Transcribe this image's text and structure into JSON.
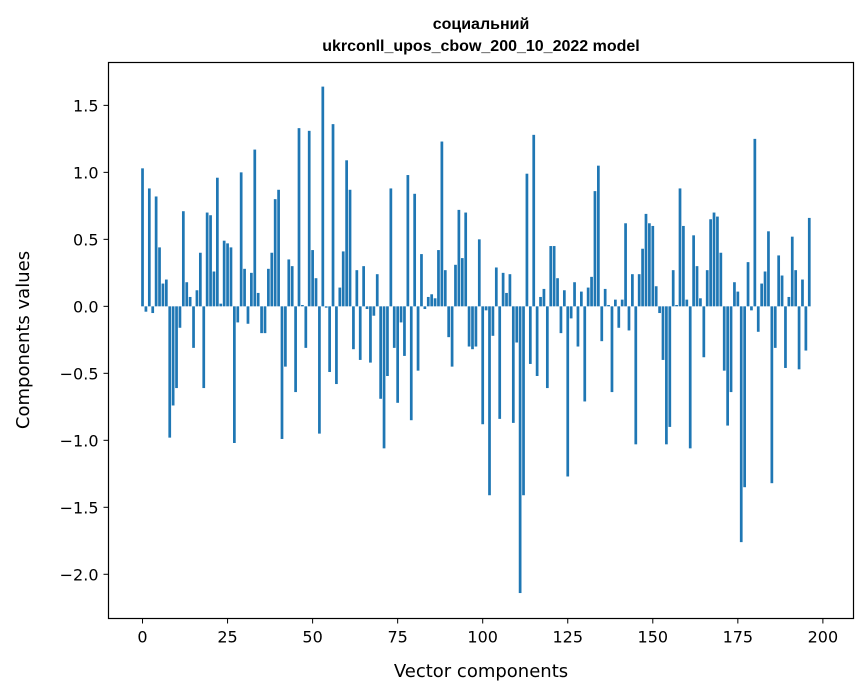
{
  "chart_data": {
    "type": "bar",
    "title_line1": "социальний",
    "title_line2": "ukrconll_upos_cbow_200_10_2022 model",
    "xlabel": "Vector components",
    "ylabel": "Components values",
    "xlim": [
      -10,
      209
    ],
    "ylim": [
      -2.33,
      1.82
    ],
    "xticks": [
      0,
      25,
      50,
      75,
      100,
      125,
      150,
      175,
      200
    ],
    "yticks": [
      -2.0,
      -1.5,
      -1.0,
      -0.5,
      0.0,
      0.5,
      1.0,
      1.5
    ],
    "ytick_labels": [
      "−2.0",
      "−1.5",
      "−1.0",
      "−0.5",
      "0.0",
      "0.5",
      "1.0",
      "1.5"
    ],
    "bar_color": "#1f77b4",
    "values": [
      1.03,
      -0.04,
      0.88,
      -0.05,
      0.82,
      0.44,
      0.17,
      0.2,
      -0.98,
      -0.74,
      -0.61,
      -0.16,
      0.71,
      0.18,
      0.07,
      -0.31,
      0.12,
      0.4,
      -0.61,
      0.7,
      0.68,
      0.26,
      0.96,
      0.02,
      0.49,
      0.47,
      0.44,
      -1.02,
      -0.12,
      1.0,
      0.28,
      -0.13,
      0.25,
      1.17,
      0.1,
      -0.2,
      -0.2,
      0.28,
      0.4,
      0.8,
      0.87,
      -0.99,
      -0.45,
      0.35,
      0.3,
      -0.64,
      1.33,
      0.01,
      -0.31,
      1.31,
      0.42,
      0.21,
      -0.95,
      1.64,
      -0.01,
      -0.49,
      1.36,
      -0.58,
      0.14,
      0.41,
      1.09,
      0.87,
      -0.32,
      0.27,
      -0.4,
      0.3,
      -0.02,
      -0.42,
      -0.07,
      0.24,
      -0.69,
      -1.06,
      -0.52,
      0.88,
      -0.31,
      -0.72,
      -0.12,
      -0.37,
      0.98,
      -0.85,
      0.84,
      -0.48,
      0.39,
      -0.02,
      0.07,
      0.09,
      0.06,
      0.42,
      1.23,
      0.27,
      -0.23,
      -0.45,
      0.31,
      0.72,
      0.36,
      0.7,
      -0.3,
      -0.32,
      -0.3,
      0.5,
      -0.88,
      -0.03,
      -1.41,
      -0.22,
      0.29,
      -0.84,
      0.25,
      0.1,
      0.24,
      -0.87,
      -0.27,
      -2.14,
      -1.41,
      0.99,
      -0.43,
      1.28,
      -0.52,
      0.07,
      0.13,
      -0.61,
      0.45,
      0.45,
      0.21,
      -0.2,
      0.12,
      -1.27,
      -0.09,
      0.18,
      -0.3,
      0.11,
      -0.71,
      0.14,
      0.22,
      0.86,
      1.05,
      -0.26,
      0.13,
      0.01,
      -0.64,
      0.05,
      -0.16,
      0.05,
      0.62,
      -0.18,
      0.24,
      -1.03,
      0.24,
      0.43,
      0.69,
      0.62,
      0.6,
      0.15,
      -0.05,
      -0.4,
      -1.03,
      -0.9,
      0.27,
      0.01,
      0.88,
      0.6,
      0.05,
      -1.06,
      0.53,
      0.3,
      0.06,
      -0.38,
      0.27,
      0.65,
      0.7,
      0.67,
      0.4,
      -0.48,
      -0.89,
      -0.64,
      0.18,
      0.11,
      -1.76,
      -1.35,
      0.33,
      -0.03,
      1.25,
      -0.19,
      0.17,
      0.26,
      0.56,
      -1.32,
      -0.31,
      0.38,
      0.23,
      -0.46,
      0.07,
      0.52,
      0.27,
      -0.47,
      0.2,
      -0.33,
      0.66
    ]
  }
}
